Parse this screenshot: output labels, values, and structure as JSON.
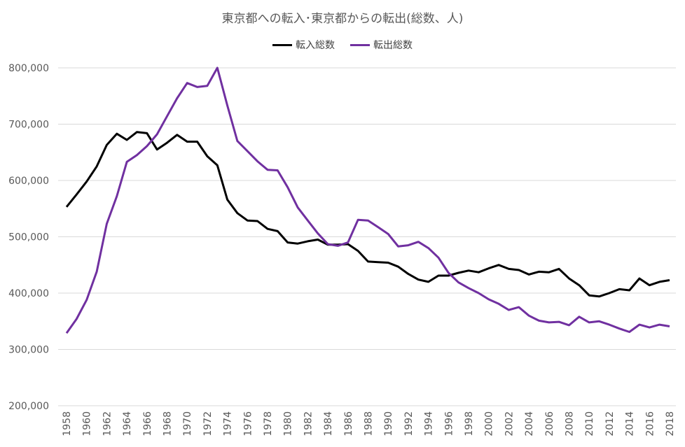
{
  "chart_data": {
    "type": "line",
    "title": "東京都への転入･東京都からの転出(総数、人)",
    "xlabel": "",
    "ylabel": "",
    "ylim": [
      200000,
      800000
    ],
    "yticks": [
      200000,
      300000,
      400000,
      500000,
      600000,
      700000,
      800000
    ],
    "ytick_labels": [
      "200,000",
      "300,000",
      "400,000",
      "500,000",
      "600,000",
      "700,000",
      "800,000"
    ],
    "grid": true,
    "legend_position": "top",
    "x": [
      1958,
      1959,
      1960,
      1961,
      1962,
      1963,
      1964,
      1965,
      1966,
      1967,
      1968,
      1969,
      1970,
      1971,
      1972,
      1973,
      1974,
      1975,
      1976,
      1977,
      1978,
      1979,
      1980,
      1981,
      1982,
      1983,
      1984,
      1985,
      1986,
      1987,
      1988,
      1989,
      1990,
      1991,
      1992,
      1993,
      1994,
      1995,
      1996,
      1997,
      1998,
      1999,
      2000,
      2001,
      2002,
      2003,
      2004,
      2005,
      2006,
      2007,
      2008,
      2009,
      2010,
      2011,
      2012,
      2013,
      2014,
      2015,
      2016,
      2017,
      2018
    ],
    "xtick_labels": [
      "1958",
      "1960",
      "1962",
      "1964",
      "1966",
      "1968",
      "1970",
      "1972",
      "1974",
      "1976",
      "1978",
      "1980",
      "1982",
      "1984",
      "1986",
      "1988",
      "1990",
      "1992",
      "1994",
      "1996",
      "1998",
      "2000",
      "2002",
      "2004",
      "2006",
      "2008",
      "2010",
      "2012",
      "2014",
      "2016",
      "2018"
    ],
    "series": [
      {
        "name": "転入総数",
        "color": "#000000",
        "values": [
          553000,
          575000,
          598000,
          625000,
          663000,
          683000,
          672000,
          686000,
          684000,
          655000,
          667000,
          681000,
          669000,
          669000,
          643000,
          627000,
          566000,
          542000,
          529000,
          528000,
          514000,
          510000,
          490000,
          488000,
          492000,
          495000,
          486000,
          486000,
          487000,
          475000,
          456000,
          455000,
          454000,
          447000,
          434000,
          424000,
          420000,
          431000,
          431000,
          436000,
          440000,
          437000,
          444000,
          450000,
          443000,
          441000,
          433000,
          438000,
          437000,
          443000,
          426000,
          414000,
          396000,
          394000,
          400000,
          407000,
          405000,
          426000,
          414000,
          420000,
          423000
        ]
      },
      {
        "name": "転出総数",
        "color": "#7030A0",
        "values": [
          329000,
          354000,
          388000,
          438000,
          523000,
          572000,
          633000,
          645000,
          661000,
          682000,
          714000,
          746000,
          773000,
          766000,
          768000,
          800000,
          733000,
          670000,
          652000,
          634000,
          619000,
          618000,
          588000,
          552000,
          529000,
          506000,
          487000,
          484000,
          490000,
          530000,
          529000,
          517000,
          505000,
          483000,
          485000,
          491000,
          480000,
          463000,
          436000,
          419000,
          409000,
          400000,
          389000,
          381000,
          370000,
          375000,
          360000,
          351000,
          348000,
          349000,
          343000,
          358000,
          348000,
          350000,
          344000,
          337000,
          331000,
          344000,
          339000,
          344000,
          341000
        ]
      }
    ]
  }
}
